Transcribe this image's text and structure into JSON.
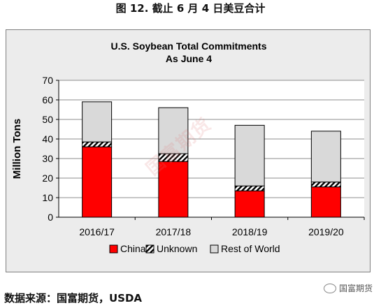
{
  "figure_title": "图 12. 截止 6 月 4 日美豆合计",
  "source_text": "数据来源：国富期货，USDA",
  "corner_label": "国富期货",
  "watermark_text": "国富期货",
  "colors": {
    "china": "#ff0000",
    "rest": "#d9d9d9",
    "unknown_hatch": "#000000"
  },
  "chart_data": {
    "type": "bar",
    "stacked": true,
    "title": "U.S. Soybean Total Commitments",
    "subtitle": "As June 4",
    "xlabel": "",
    "ylabel": "Million Tons",
    "ylim": [
      0,
      70
    ],
    "yticks": [
      "0",
      "10",
      "20",
      "30",
      "40",
      "50",
      "60",
      "70"
    ],
    "categories": [
      "2016/17",
      "2017/18",
      "2018/19",
      "2019/20"
    ],
    "series": [
      {
        "name": "China",
        "values": [
          36,
          28.5,
          13.5,
          15.5
        ]
      },
      {
        "name": "Unknown",
        "values": [
          2.5,
          4,
          2.5,
          2.5
        ]
      },
      {
        "name": "Rest of World",
        "values": [
          20.5,
          23.5,
          31,
          26
        ]
      }
    ],
    "legend_position": "bottom",
    "grid": true
  }
}
